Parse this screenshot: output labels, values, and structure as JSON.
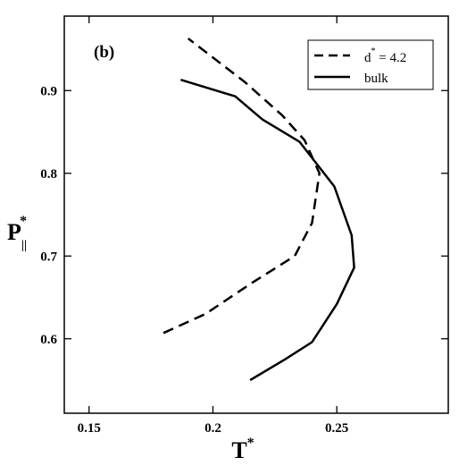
{
  "chart_data": {
    "type": "line",
    "panel_label": "(b)",
    "xlabel": "T",
    "xlabel_sup": "*",
    "ylabel": "P",
    "ylabel_sub": "||",
    "ylabel_sup": "*",
    "xlim": [
      0.14,
      0.295
    ],
    "ylim": [
      0.51,
      0.99
    ],
    "xticks": [
      0.15,
      0.2,
      0.25
    ],
    "xtick_labels": [
      "0.15",
      "0.2",
      "0.25"
    ],
    "yticks": [
      0.6,
      0.7,
      0.8,
      0.9
    ],
    "ytick_labels": [
      "0.6",
      "0.7",
      "0.8",
      "0.9"
    ],
    "grid": false,
    "legend_position": "top-right",
    "series": [
      {
        "name": "d* = 4.2",
        "legend_main": "d",
        "legend_sup": "*",
        "legend_rest": " = 4.2",
        "style": "dashed",
        "color": "#000000",
        "points": [
          [
            0.18,
            0.607
          ],
          [
            0.197,
            0.63
          ],
          [
            0.216,
            0.668
          ],
          [
            0.233,
            0.7
          ],
          [
            0.24,
            0.74
          ],
          [
            0.243,
            0.8
          ],
          [
            0.237,
            0.84
          ],
          [
            0.228,
            0.87
          ],
          [
            0.213,
            0.91
          ],
          [
            0.19,
            0.963
          ]
        ]
      },
      {
        "name": "bulk",
        "legend_main": "bulk",
        "legend_sup": "",
        "legend_rest": "",
        "style": "solid",
        "color": "#000000",
        "points": [
          [
            0.215,
            0.55
          ],
          [
            0.229,
            0.575
          ],
          [
            0.24,
            0.596
          ],
          [
            0.25,
            0.642
          ],
          [
            0.257,
            0.686
          ],
          [
            0.256,
            0.725
          ],
          [
            0.249,
            0.784
          ],
          [
            0.235,
            0.838
          ],
          [
            0.22,
            0.865
          ],
          [
            0.209,
            0.893
          ],
          [
            0.187,
            0.913
          ]
        ]
      }
    ]
  }
}
